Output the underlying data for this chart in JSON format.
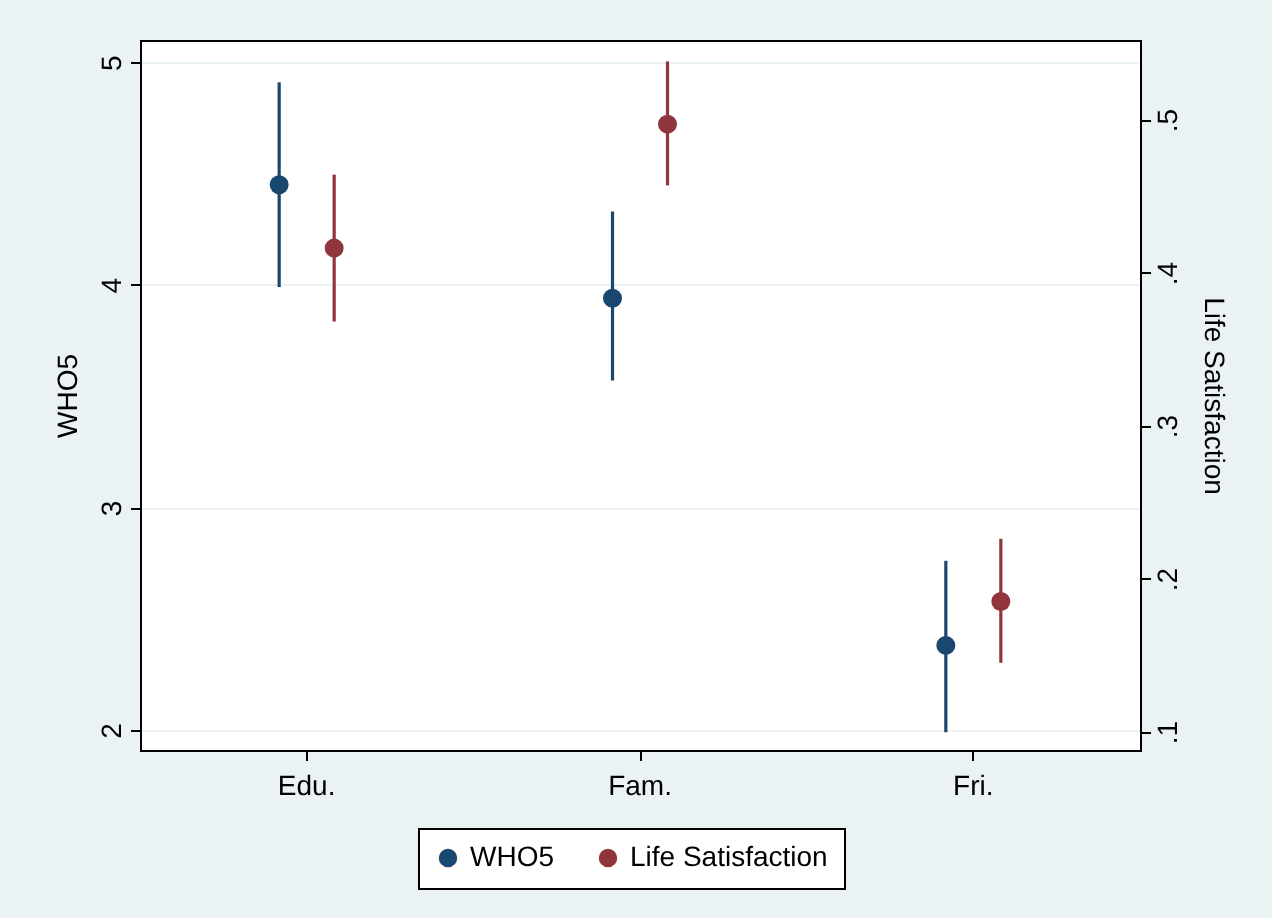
{
  "chart_data": {
    "type": "scatter",
    "xlabel": null,
    "ylabel": "WHO5",
    "y2label": "Life Satisfaction",
    "categories": [
      "Edu.",
      "Fam.",
      "Fri."
    ],
    "series": [
      {
        "name": "WHO5",
        "color": "#1a476f",
        "values": [
          4.45,
          3.94,
          2.38
        ],
        "errors": [
          [
            3.99,
            4.91
          ],
          [
            3.57,
            4.33
          ],
          [
            1.99,
            2.76
          ]
        ]
      },
      {
        "name": "Life Satisfaction",
        "color": "#90353b",
        "axis": "y2",
        "values": [
          0.416,
          0.497,
          0.185
        ],
        "errors": [
          [
            0.368,
            0.464
          ],
          [
            0.457,
            0.538
          ],
          [
            0.145,
            0.226
          ]
        ]
      }
    ],
    "ylim": [
      1.91,
      5.1
    ],
    "yticks": [
      2,
      3,
      4,
      5
    ],
    "y2lim": [
      0.088,
      0.552
    ],
    "y2ticks": [
      {
        "value": 0.1,
        "label": ".1"
      },
      {
        "value": 0.2,
        "label": ".2"
      },
      {
        "value": 0.3,
        "label": ".3"
      },
      {
        "value": 0.4,
        "label": ".4"
      },
      {
        "value": 0.5,
        "label": ".5"
      }
    ],
    "grid": "y",
    "legend": "bottom",
    "marker": "circle"
  }
}
